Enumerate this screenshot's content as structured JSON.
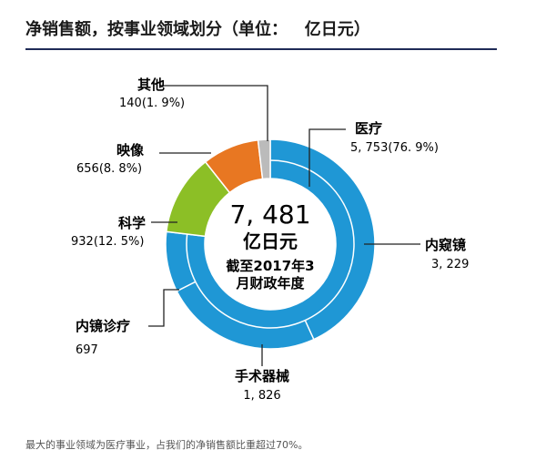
{
  "title": "净销售额，按事业领域划分（单位：   亿日元）",
  "footer": "最大的事业领域为医疗事业，占我们的净销售额比重超过70%。",
  "center": {
    "total": "7, 481",
    "unit": "亿日元",
    "line1": "截至2017年3",
    "line2": "月财政年度"
  },
  "labels": {
    "medical": {
      "name": "医疗",
      "value": "5, 753(76. 9%)"
    },
    "endoscopy": {
      "name": "内窥镜",
      "value": "3, 229"
    },
    "surgical": {
      "name": "手术器械",
      "value": "1, 826"
    },
    "endo_therapy": {
      "name": "内镜诊疗",
      "value": "697"
    },
    "science": {
      "name": "科学",
      "value": "932(12. 5%)"
    },
    "imaging": {
      "name": "映像",
      "value": "656(8. 8%)"
    },
    "other": {
      "name": "其他",
      "value": "140(1. 9%)"
    }
  },
  "colors": {
    "medical": "#1f97d5",
    "science": "#8cbf26",
    "imaging": "#e87722",
    "other": "#bbbbbb",
    "leader": "#222222",
    "rule": "#1f2b57"
  },
  "chart_data": {
    "type": "pie",
    "title": "净销售额，按事业领域划分（单位：   亿日元）",
    "unit": "亿日元",
    "total": 7481,
    "segments": [
      {
        "name": "医疗",
        "value": 5753,
        "percent": 76.9
      },
      {
        "name": "科学",
        "value": 932,
        "percent": 12.5
      },
      {
        "name": "映像",
        "value": 656,
        "percent": 8.8
      },
      {
        "name": "其他",
        "value": 140,
        "percent": 1.9
      }
    ],
    "medical_breakdown": [
      {
        "name": "内窥镜",
        "value": 3229
      },
      {
        "name": "手术器械",
        "value": 1826
      },
      {
        "name": "内镜诊疗",
        "value": 697
      }
    ]
  }
}
